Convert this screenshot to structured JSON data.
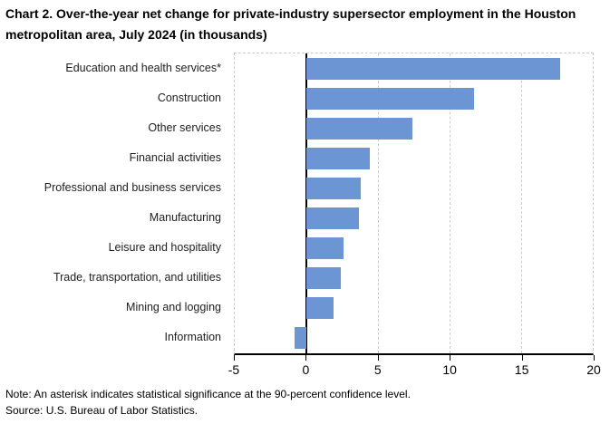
{
  "chart_data": {
    "type": "bar",
    "orientation": "horizontal",
    "title": "Chart 2. Over-the-year net change for private-industry supersector employment in the Houston metropolitan area, July 2024 (in thousands)",
    "categories": [
      "Education and health services*",
      "Construction",
      "Other services",
      "Financial activities",
      "Professional and business services",
      "Manufacturing",
      "Leisure and hospitality",
      "Trade, transportation, and utilities",
      "Mining and logging",
      "Information"
    ],
    "values": [
      17.7,
      11.7,
      7.4,
      4.4,
      3.8,
      3.7,
      2.6,
      2.4,
      1.9,
      -0.8
    ],
    "xlim": [
      -5,
      20
    ],
    "xticks": [
      -5,
      0,
      5,
      10,
      15,
      20
    ],
    "grid_x": [
      5,
      10,
      15
    ],
    "grid": "vertical dashed gridlines, dashed plot border, solid zero line",
    "xlabel": "",
    "ylabel": "",
    "legend": "none"
  },
  "note": "Note: An asterisk indicates statistical significance at the 90-percent confidence level.",
  "source": "Source: U.S. Bureau of Labor Statistics.",
  "colors": {
    "bar": "#6b95d3",
    "gridline": "#cccccc",
    "axis": "#000000",
    "text": "#000000"
  }
}
